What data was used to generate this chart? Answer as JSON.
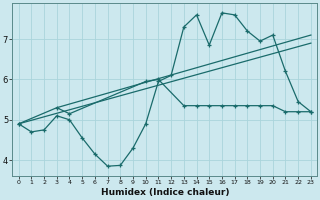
{
  "xlabel": "Humidex (Indice chaleur)",
  "ylabel": "",
  "bg_color": "#cce8ee",
  "grid_color": "#aad4dc",
  "line_color": "#1a6b6b",
  "x_ticks": [
    0,
    1,
    2,
    3,
    4,
    5,
    6,
    7,
    8,
    9,
    10,
    11,
    12,
    13,
    14,
    15,
    16,
    17,
    18,
    19,
    20,
    21,
    22,
    23
  ],
  "y_ticks": [
    4,
    5,
    6,
    7
  ],
  "ylim": [
    3.6,
    7.9
  ],
  "xlim": [
    -0.5,
    23.5
  ],
  "line1_x": [
    0,
    1,
    2,
    3,
    4,
    5,
    6,
    7,
    8,
    9,
    10,
    11,
    12,
    13,
    14,
    15,
    16,
    17,
    18,
    19,
    20,
    21,
    22,
    23
  ],
  "line1_y": [
    4.9,
    4.7,
    4.75,
    5.1,
    5.0,
    4.55,
    4.15,
    3.85,
    3.87,
    4.3,
    4.9,
    5.95,
    6.1,
    7.3,
    7.6,
    6.85,
    7.65,
    7.6,
    7.2,
    6.95,
    7.1,
    6.2,
    5.45,
    5.2
  ],
  "line2_x": [
    0,
    3,
    4,
    10,
    11,
    13,
    14,
    15,
    16,
    17,
    18,
    19,
    20,
    21,
    22,
    23
  ],
  "line2_y": [
    4.9,
    5.3,
    5.15,
    5.95,
    6.0,
    5.35,
    5.35,
    5.35,
    5.35,
    5.35,
    5.35,
    5.35,
    5.35,
    5.2,
    5.2,
    5.2
  ],
  "line3_x": [
    0,
    23
  ],
  "line3_y": [
    4.9,
    6.9
  ],
  "line4_x": [
    3,
    23
  ],
  "line4_y": [
    5.3,
    7.1
  ]
}
